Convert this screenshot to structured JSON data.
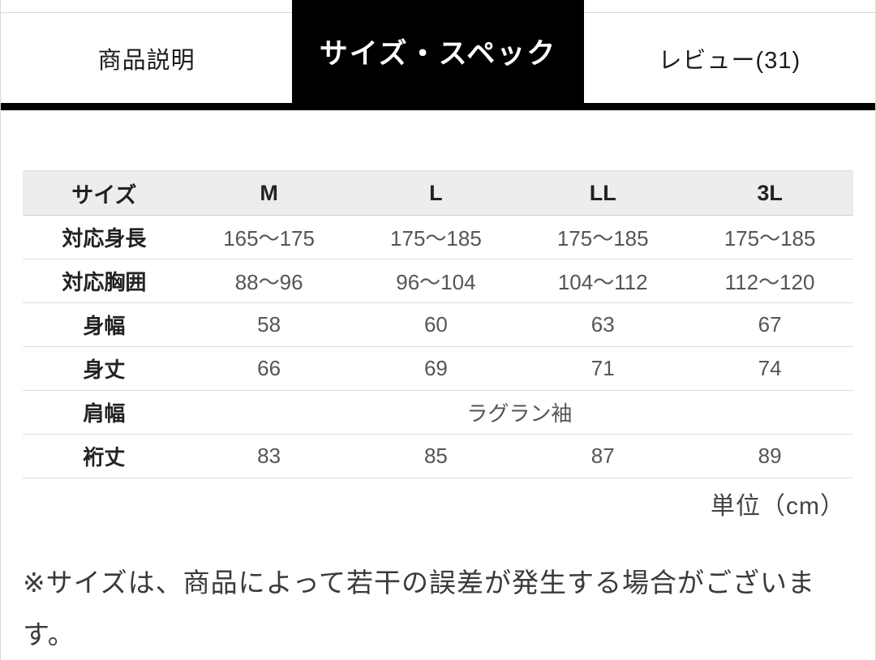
{
  "tabs": [
    {
      "label": "商品説明",
      "active": false
    },
    {
      "label": "サイズ・スペック",
      "active": true
    },
    {
      "label": "レビュー(31)",
      "active": false
    }
  ],
  "size_table": {
    "columns": [
      "サイズ",
      "M",
      "L",
      "LL",
      "3L"
    ],
    "rows": [
      {
        "label": "対応身長",
        "values": [
          "165〜175",
          "175〜185",
          "175〜185",
          "175〜185"
        ]
      },
      {
        "label": "対応胸囲",
        "values": [
          "88〜96",
          "96〜104",
          "104〜112",
          "112〜120"
        ]
      },
      {
        "label": "身幅",
        "values": [
          "58",
          "60",
          "63",
          "67"
        ]
      },
      {
        "label": "身丈",
        "values": [
          "66",
          "69",
          "71",
          "74"
        ]
      },
      {
        "label": "肩幅",
        "values": [
          "ラグラン袖"
        ],
        "spans_all_sizes": true
      },
      {
        "label": "裄丈",
        "values": [
          "83",
          "85",
          "87",
          "89"
        ]
      }
    ],
    "unit_note": "単位（cm）"
  },
  "footnote": "※サイズは、商品によって若干の誤差が発生する場合がございます。",
  "colors": {
    "active_tab_bg": "#000000",
    "active_tab_text": "#ffffff",
    "table_header_bg": "#ededed",
    "row_border": "#dddddd",
    "page_border": "#d9d9d9"
  }
}
